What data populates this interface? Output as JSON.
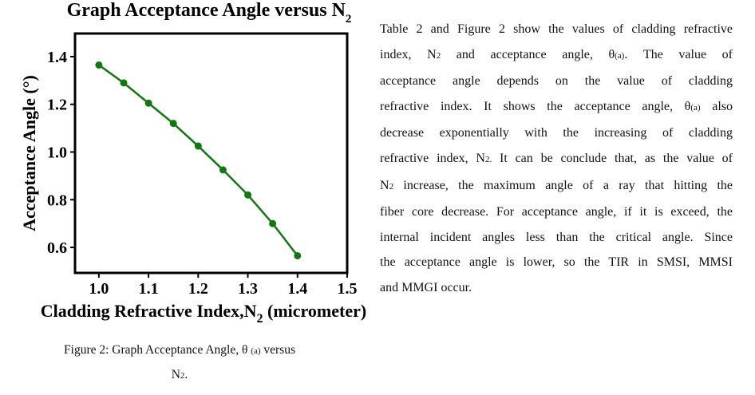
{
  "chart_data": {
    "type": "line",
    "title": "Graph Acceptance Angle versus N",
    "title_subscript": "2",
    "xlabel": "Cladding Refractive Index,N",
    "xlabel_subscript": "2",
    "xlabel_suffix": " (micrometer)",
    "ylabel": "Acceptance Angle (°)",
    "x": [
      1.0,
      1.05,
      1.1,
      1.15,
      1.2,
      1.25,
      1.3,
      1.35,
      1.4
    ],
    "values": [
      1.365,
      1.29,
      1.205,
      1.12,
      1.025,
      0.925,
      0.82,
      0.7,
      0.565
    ],
    "color": "#117711",
    "xlim": [
      0.952,
      1.5
    ],
    "ylim": [
      0.493,
      1.497
    ],
    "xticks": [
      {
        "value": 1,
        "label": "1.0"
      },
      1.1,
      1.2,
      1.3,
      1.4,
      1.5
    ],
    "yticks": [
      0.6,
      0.8,
      {
        "value": 1,
        "label": "1.0"
      },
      1.2,
      1.4
    ]
  },
  "caption": {
    "lines": [
      [
        {
          "text": "Figure 2: Graph Acceptance Angle, θ "
        },
        {
          "text": "(a)",
          "sub": true
        },
        {
          "text": " versus"
        }
      ],
      [
        {
          "text": "N"
        },
        {
          "text": "2",
          "sub": true
        },
        {
          "text": "."
        }
      ]
    ]
  },
  "paragraph": {
    "lines": [
      [
        {
          "text": "Table 2 and Figure 2 show the values of cladding refractive"
        }
      ],
      [
        {
          "text": "index, N"
        },
        {
          "text": "2",
          "sub": true
        },
        {
          "text": " and acceptance angle, θ"
        },
        {
          "text": "(a)",
          "sub": true
        },
        {
          "text": ". The value of"
        }
      ],
      [
        {
          "text": "acceptance angle depends on the value of cladding"
        }
      ],
      [
        {
          "text": "refractive index. It shows the acceptance angle, θ"
        },
        {
          "text": "(a)",
          "sub": true
        },
        {
          "text": " also"
        }
      ],
      [
        {
          "text": "decrease exponentially with the increasing of cladding"
        }
      ],
      [
        {
          "text": "refractive index, N"
        },
        {
          "text": "2.",
          "sub": true
        },
        {
          "text": " It can be conclude that, as the value of"
        }
      ],
      [
        {
          "text": "N"
        },
        {
          "text": "2",
          "sub": true
        },
        {
          "text": " increase, the maximum angle of a ray that hitting the"
        }
      ],
      [
        {
          "text": "fiber core decrease. For acceptance angle, if it is exceed, the"
        }
      ],
      [
        {
          "text": "internal incident angles less than the critical angle. Since"
        }
      ],
      [
        {
          "text": "the acceptance angle is lower, so the TIR in SMSI, MMSI"
        }
      ],
      [
        {
          "text": "and MMGI occur."
        }
      ]
    ]
  }
}
